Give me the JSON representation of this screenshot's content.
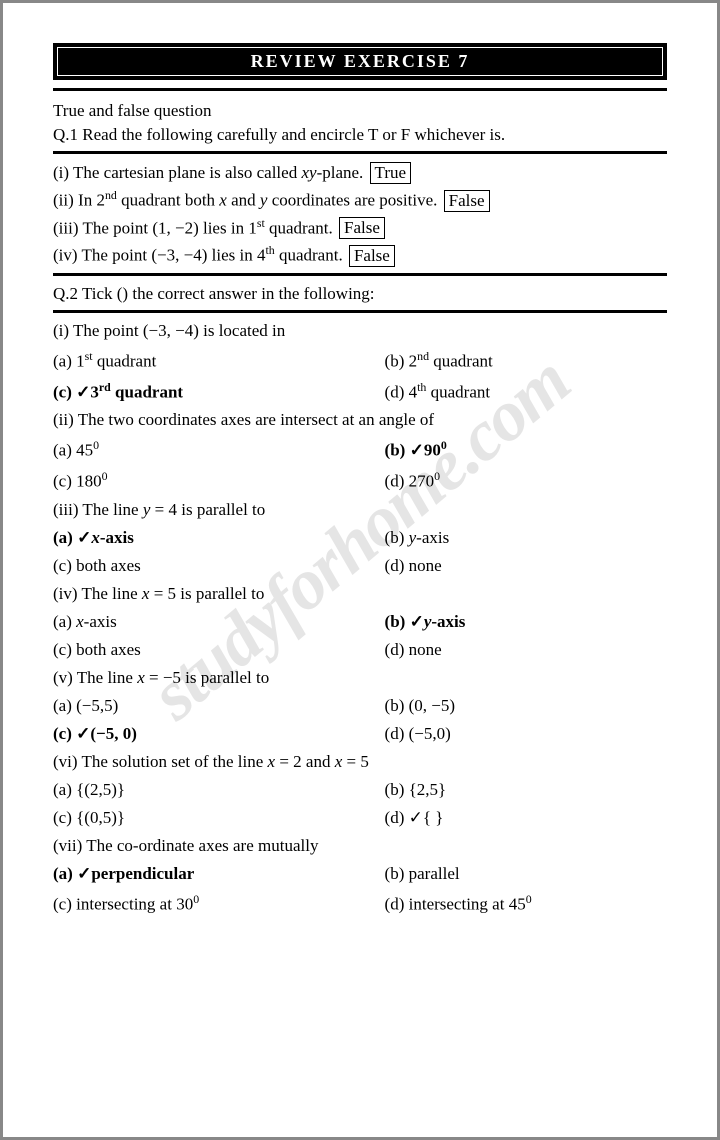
{
  "title": "REVIEW EXERCISE 7",
  "watermark": "studyforhome.com",
  "tf": {
    "heading": "True and false question",
    "instruction": "Q.1 Read the following carefully and encircle T or F whichever is.",
    "items": [
      {
        "n": "(i)",
        "pre": "The cartesian plane is also called ",
        "var": "xy",
        "post": "-plane.",
        "ans": "True"
      },
      {
        "n": "(ii)",
        "pre": "In 2",
        "sup": "nd",
        "mid": " quadrant both ",
        "var1": "x",
        "mid2": " and ",
        "var2": "y",
        "post": " coordinates are positive.",
        "ans": "False"
      },
      {
        "n": "(iii)",
        "pre": "The point (1, −2) lies in 1",
        "sup": "st",
        "post": " quadrant.",
        "ans": "False"
      },
      {
        "n": "(iv)",
        "pre": "The point (−3, −4) lies in 4",
        "sup": "th",
        "post": " quadrant.",
        "ans": "False"
      }
    ]
  },
  "mcq": {
    "instruction": "Q.2 Tick () the correct answer in the following:",
    "q1": {
      "q": "(i) The point (−3, −4) is located in",
      "a": "(a) 1",
      "a_sup": "st",
      "a_post": " quadrant",
      "b": "(b) 2",
      "b_sup": "nd",
      "b_post": " quadrant",
      "c": "(c) ✓3",
      "c_sup": "rd",
      "c_post": " quadrant",
      "d": "(d) 4",
      "d_sup": "th",
      "d_post": " quadrant"
    },
    "q2": {
      "q": "(ii) The two coordinates axes are intersect at an angle of",
      "a": "(a) 45",
      "a_sup": "0",
      "b": "(b) ✓90",
      "b_sup": "0",
      "c": "(c) 180",
      "c_sup": "0",
      "d": "(d) 270",
      "d_sup": "0"
    },
    "q3": {
      "q_pre": "(iii) The line ",
      "q_var": "y",
      "q_post": " = 4 is parallel to",
      "a_pre": "(a) ✓",
      "a_var": "x",
      "a_post": "-axis",
      "b_pre": "(b) ",
      "b_var": "y",
      "b_post": "-axis",
      "c": "(c) both axes",
      "d": "(d) none"
    },
    "q4": {
      "q_pre": "(iv) The line ",
      "q_var": "x",
      "q_post": " = 5 is parallel to",
      "a_pre": "(a) ",
      "a_var": "x",
      "a_post": "-axis",
      "b_pre": "(b) ✓",
      "b_var": "y",
      "b_post": "-axis",
      "c": "(c) both axes",
      "d": "(d) none"
    },
    "q5": {
      "q_pre": "(v) The line ",
      "q_var": "x",
      "q_post": " = −5 is parallel to",
      "a": "(a) (−5,5)",
      "b": "(b) (0, −5)",
      "c": "(c) ✓(−5, 0)",
      "d": "(d) (−5,0)"
    },
    "q6": {
      "q_pre": "(vi) The solution set of the line ",
      "q_var1": "x",
      "q_mid": " = 2 and ",
      "q_var2": "x",
      "q_post": " = 5",
      "a": "(a) {(2,5)}",
      "b": "(b) {2,5}",
      "c": "(c) {(0,5)}",
      "d": "(d) ✓{   }"
    },
    "q7": {
      "q": "(vii) The co-ordinate axes are mutually",
      "a": "(a) ✓perpendicular",
      "b": "(b) parallel",
      "c": "(c) intersecting at 30",
      "c_sup": "0",
      "d": "(d) intersecting at 45",
      "d_sup": "0"
    }
  }
}
